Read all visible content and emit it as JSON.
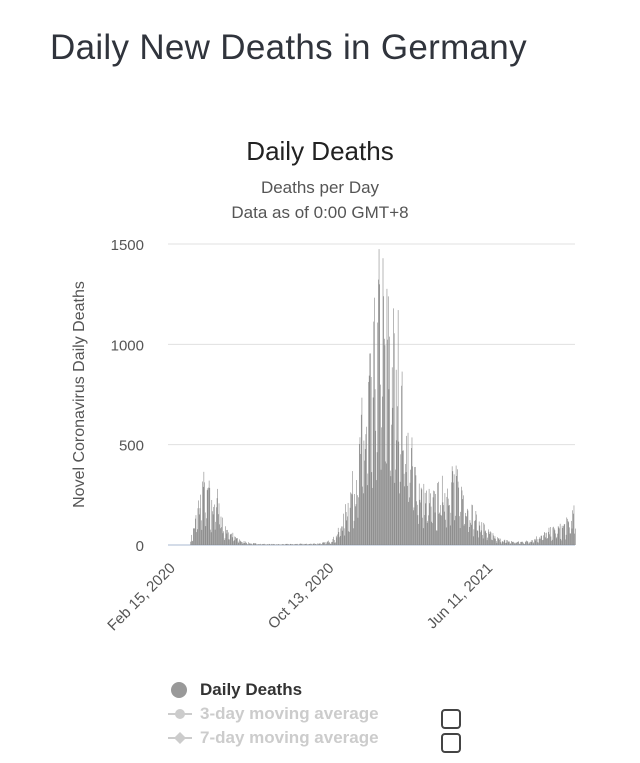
{
  "page": {
    "title": "Daily New Deaths in Germany"
  },
  "chart_data": {
    "type": "bar",
    "title": "Daily Deaths",
    "subtitle_lines": [
      "Deaths per Day",
      "Data as of 0:00 GMT+8"
    ],
    "ylabel": "Novel Coronavirus Daily Deaths",
    "xlabel": "",
    "ylim": [
      0,
      1500
    ],
    "yticks": [
      0,
      500,
      1000,
      1500
    ],
    "x_tick_labels": [
      "Feb 15, 2020",
      "Oct 13, 2020",
      "Jun 11, 2021"
    ],
    "x_range": [
      "2020-02-15",
      "2021-10-25"
    ],
    "grid": true,
    "bar_color": "#888888",
    "series": [
      {
        "name": "Daily Deaths",
        "visible": true,
        "points": [
          [
            "2020-03-20",
            30
          ],
          [
            "2020-03-25",
            90
          ],
          [
            "2020-03-30",
            170
          ],
          [
            "2020-04-04",
            240
          ],
          [
            "2020-04-08",
            330
          ],
          [
            "2020-04-12",
            230
          ],
          [
            "2020-04-16",
            300
          ],
          [
            "2020-04-20",
            180
          ],
          [
            "2020-04-24",
            250
          ],
          [
            "2020-04-28",
            200
          ],
          [
            "2020-05-02",
            280
          ],
          [
            "2020-05-06",
            130
          ],
          [
            "2020-05-10",
            70
          ],
          [
            "2020-05-15",
            90
          ],
          [
            "2020-05-20",
            60
          ],
          [
            "2020-05-27",
            40
          ],
          [
            "2020-06-05",
            20
          ],
          [
            "2020-06-20",
            8
          ],
          [
            "2020-07-10",
            5
          ],
          [
            "2020-08-01",
            4
          ],
          [
            "2020-08-25",
            5
          ],
          [
            "2020-09-15",
            6
          ],
          [
            "2020-10-01",
            8
          ],
          [
            "2020-10-10",
            12
          ],
          [
            "2020-10-20",
            25
          ],
          [
            "2020-10-27",
            45
          ],
          [
            "2020-11-03",
            100
          ],
          [
            "2020-11-10",
            170
          ],
          [
            "2020-11-17",
            250
          ],
          [
            "2020-11-24",
            330
          ],
          [
            "2020-12-01",
            460
          ],
          [
            "2020-12-05",
            600
          ],
          [
            "2020-12-09",
            530
          ],
          [
            "2020-12-13",
            700
          ],
          [
            "2020-12-17",
            900
          ],
          [
            "2020-12-20",
            650
          ],
          [
            "2020-12-24",
            1000
          ],
          [
            "2020-12-28",
            880
          ],
          [
            "2020-12-30",
            1240
          ],
          [
            "2021-01-02",
            1150
          ],
          [
            "2021-01-06",
            1200
          ],
          [
            "2021-01-09",
            950
          ],
          [
            "2021-01-12",
            1100
          ],
          [
            "2021-01-15",
            1050
          ],
          [
            "2021-01-19",
            880
          ],
          [
            "2021-01-22",
            1000
          ],
          [
            "2021-01-26",
            750
          ],
          [
            "2021-01-29",
            980
          ],
          [
            "2021-02-02",
            800
          ],
          [
            "2021-02-05",
            700
          ],
          [
            "2021-02-09",
            600
          ],
          [
            "2021-02-13",
            500
          ],
          [
            "2021-02-17",
            480
          ],
          [
            "2021-02-22",
            380
          ],
          [
            "2021-03-01",
            330
          ],
          [
            "2021-03-08",
            260
          ],
          [
            "2021-03-15",
            240
          ],
          [
            "2021-03-22",
            220
          ],
          [
            "2021-03-29",
            250
          ],
          [
            "2021-04-05",
            280
          ],
          [
            "2021-04-12",
            300
          ],
          [
            "2021-04-19",
            360
          ],
          [
            "2021-04-26",
            330
          ],
          [
            "2021-05-03",
            280
          ],
          [
            "2021-05-10",
            260
          ],
          [
            "2021-05-17",
            200
          ],
          [
            "2021-05-24",
            160
          ],
          [
            "2021-05-31",
            120
          ],
          [
            "2021-06-07",
            100
          ],
          [
            "2021-06-14",
            70
          ],
          [
            "2021-06-21",
            50
          ],
          [
            "2021-07-01",
            30
          ],
          [
            "2021-07-15",
            20
          ],
          [
            "2021-08-01",
            15
          ],
          [
            "2021-08-15",
            20
          ],
          [
            "2021-08-25",
            35
          ],
          [
            "2021-09-05",
            50
          ],
          [
            "2021-09-15",
            70
          ],
          [
            "2021-09-25",
            80
          ],
          [
            "2021-10-05",
            90
          ],
          [
            "2021-10-15",
            120
          ],
          [
            "2021-10-25",
            170
          ]
        ]
      },
      {
        "name": "3-day moving average",
        "visible": false
      },
      {
        "name": "7-day moving average",
        "visible": false
      }
    ],
    "legend_position": "bottom"
  },
  "legend": {
    "items": [
      {
        "label": "Daily Deaths",
        "icon": "circle-icon",
        "state": "active"
      },
      {
        "label": "3-day moving average",
        "icon": "line-circle-icon",
        "state": "hidden"
      },
      {
        "label": "7-day moving average",
        "icon": "line-diamond-icon",
        "state": "hidden"
      }
    ]
  }
}
